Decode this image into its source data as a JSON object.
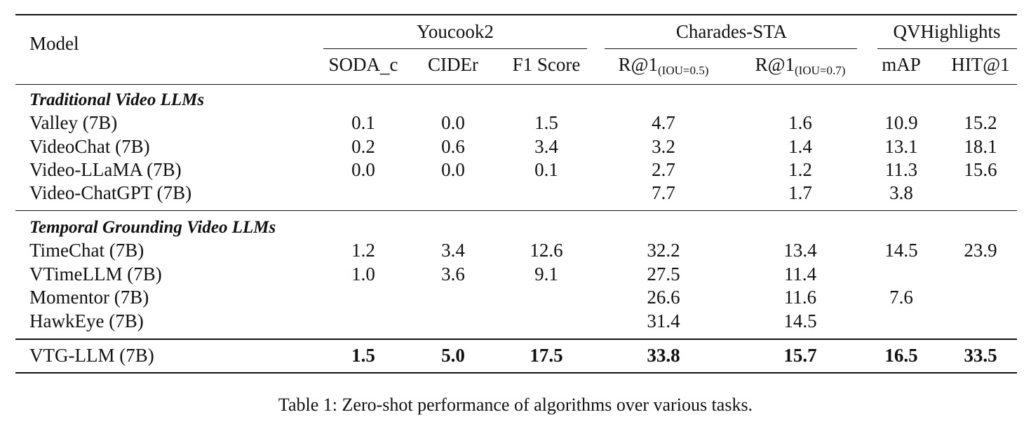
{
  "header": {
    "model_label": "Model",
    "groups": [
      "Youcook2",
      "Charades-STA",
      "QVHighlights"
    ],
    "metrics": [
      {
        "main": "SODA_c",
        "sub": ""
      },
      {
        "main": "CIDEr",
        "sub": ""
      },
      {
        "main": "F1 Score",
        "sub": ""
      },
      {
        "main": "R@1",
        "sub": "(IOU=0.5)"
      },
      {
        "main": "R@1",
        "sub": "(IOU=0.7)"
      },
      {
        "main": "mAP",
        "sub": ""
      },
      {
        "main": "HIT@1",
        "sub": ""
      }
    ]
  },
  "sections": [
    {
      "title": "Traditional Video LLMs",
      "rows": [
        {
          "model": "Valley (7B)",
          "values": [
            "0.1",
            "0.0",
            "1.5",
            "4.7",
            "1.6",
            "10.9",
            "15.2"
          ]
        },
        {
          "model": "VideoChat (7B)",
          "values": [
            "0.2",
            "0.6",
            "3.4",
            "3.2",
            "1.4",
            "13.1",
            "18.1"
          ]
        },
        {
          "model": "Video-LLaMA (7B)",
          "values": [
            "0.0",
            "0.0",
            "0.1",
            "2.7",
            "1.2",
            "11.3",
            "15.6"
          ]
        },
        {
          "model": "Video-ChatGPT (7B)",
          "values": [
            "",
            "",
            "",
            "7.7",
            "1.7",
            "3.8",
            ""
          ]
        }
      ]
    },
    {
      "title": "Temporal Grounding Video LLMs",
      "rows": [
        {
          "model": "TimeChat (7B)",
          "values": [
            "1.2",
            "3.4",
            "12.6",
            "32.2",
            "13.4",
            "14.5",
            "23.9"
          ]
        },
        {
          "model": "VTimeLLM (7B)",
          "values": [
            "1.0",
            "3.6",
            "9.1",
            "27.5",
            "11.4",
            "",
            ""
          ]
        },
        {
          "model": "Momentor (7B)",
          "values": [
            "",
            "",
            "",
            "26.6",
            "11.6",
            "7.6",
            ""
          ]
        },
        {
          "model": "HawkEye (7B)",
          "values": [
            "",
            "",
            "",
            "31.4",
            "14.5",
            "",
            ""
          ]
        }
      ]
    }
  ],
  "final_row": {
    "model": "VTG-LLM (7B)",
    "values": [
      "1.5",
      "5.0",
      "17.5",
      "33.8",
      "15.7",
      "16.5",
      "33.5"
    ]
  },
  "caption": "Table 1: Zero-shot performance of algorithms over various tasks."
}
